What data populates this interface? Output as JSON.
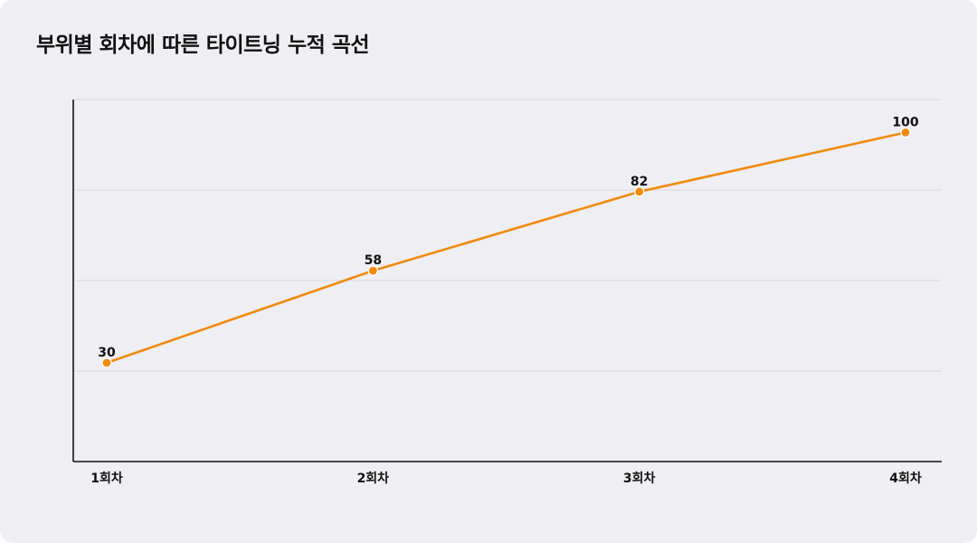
{
  "title": "부위별 회차에 따른 타이트닝 누적 곡선",
  "colors": {
    "line": "#f08a0c",
    "grid": "#d9d8de",
    "axis": "#111111",
    "background": "#efeef2"
  },
  "chart_data": {
    "type": "line",
    "title": "부위별 회차에 따른 타이트닝 누적 곡선",
    "categories": [
      "1회차",
      "2회차",
      "3회차",
      "4회차"
    ],
    "series": [
      {
        "values": [
          30,
          58,
          82,
          100
        ]
      }
    ],
    "ylim": [
      0,
      110
    ],
    "grid": true,
    "yticks_visible": false,
    "legend": "none",
    "data_labels": true
  }
}
